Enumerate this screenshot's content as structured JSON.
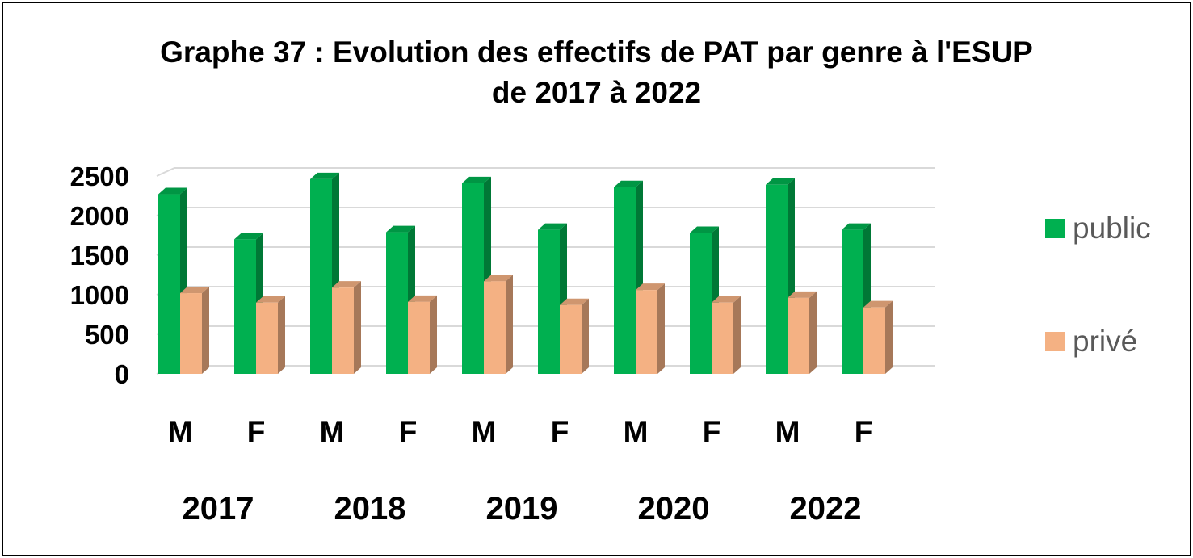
{
  "chart_data": {
    "type": "bar",
    "title_lines": [
      "Graphe 37 : Evolution des effectifs de PAT par genre à l'ESUP",
      "de 2017 à 2022"
    ],
    "categories": [
      "M",
      "F",
      "M",
      "F",
      "M",
      "F",
      "M",
      "F",
      "M",
      "F"
    ],
    "groups": [
      "2017",
      "2018",
      "2019",
      "2020",
      "2022"
    ],
    "series": [
      {
        "name": "public",
        "color": "#00B050",
        "values": [
          2270,
          1700,
          2460,
          1790,
          2410,
          1820,
          2360,
          1780,
          2390,
          1820
        ]
      },
      {
        "name": "privé",
        "color": "#F4B183",
        "values": [
          1020,
          900,
          1090,
          910,
          1170,
          870,
          1060,
          900,
          960,
          840
        ]
      }
    ],
    "y_ticks": [
      "0",
      "500",
      "1000",
      "1500",
      "2000",
      "2500"
    ],
    "ylim": [
      0,
      2500
    ],
    "grid": true,
    "legend_position": "right"
  }
}
